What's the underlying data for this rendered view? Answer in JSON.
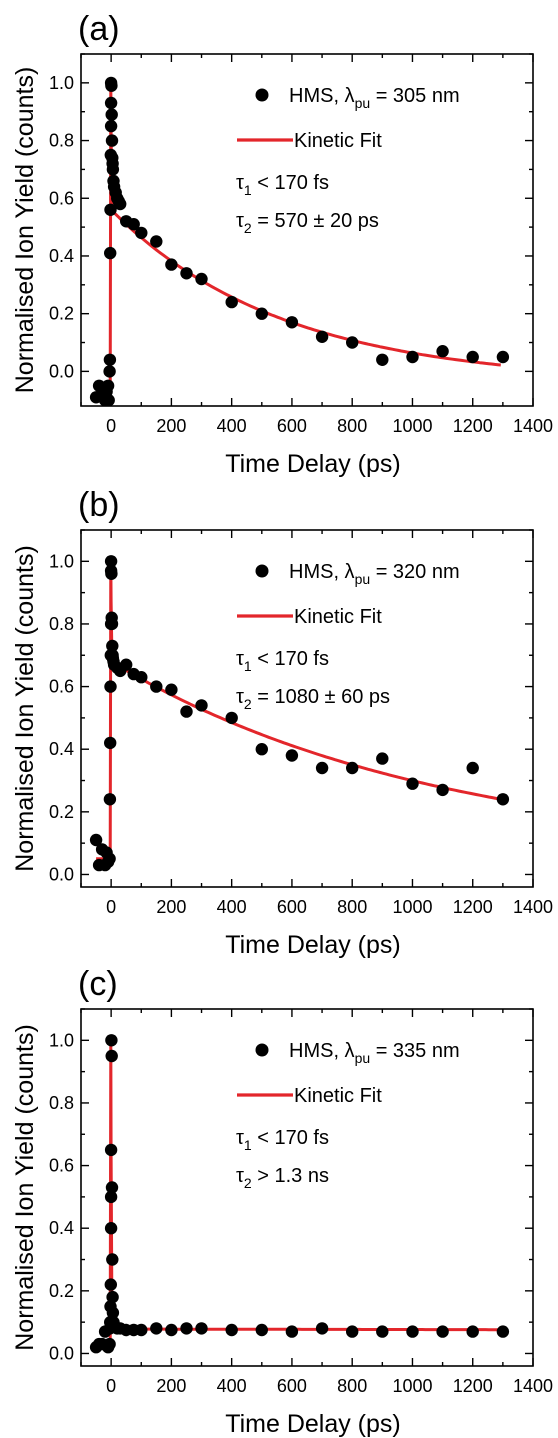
{
  "chart_data": [
    {
      "type": "scatter",
      "panel_label": "(a)",
      "xlabel": "Time Delay (ps)",
      "ylabel": "Normalised Ion Yield (counts)",
      "xlim": [
        -100,
        1400
      ],
      "ylim": [
        -0.12,
        1.1
      ],
      "x_ticks": [
        0,
        200,
        400,
        600,
        800,
        1000,
        1200,
        1400
      ],
      "y_ticks": [
        0.0,
        0.2,
        0.4,
        0.6,
        0.8,
        1.0
      ],
      "x_tick_labels": [
        "0",
        "200",
        "400",
        "600",
        "800",
        "1000",
        "1200",
        "1400"
      ],
      "y_tick_labels": [
        "0.0",
        "0.2",
        "0.4",
        "0.6",
        "0.8",
        "1.0"
      ],
      "legend": {
        "data_name": "HMS, λ",
        "data_sub": "pu",
        "data_suffix": " = 305 nm",
        "fit_name": "Kinetic Fit",
        "tau1_prefix": "τ",
        "tau1_sub": "1",
        "tau1_suffix": " < 170 fs",
        "tau2_prefix": "τ",
        "tau2_sub": "2",
        "tau2_suffix": " = 570 ± 20 ps"
      },
      "colors": {
        "points": "#000000",
        "fit": "#e3262b"
      },
      "fit": {
        "baseline": -0.065,
        "peak": 1.0,
        "amplitude": 0.6,
        "tau2_ps": 570,
        "offset": -0.04
      },
      "series": [
        {
          "name": "HMS, λpu = 305 nm",
          "x": [
            -50,
            -40,
            -30,
            -20,
            -15,
            -10,
            -8,
            -5,
            -4,
            -3,
            -2,
            -1,
            0,
            0,
            0,
            1,
            2,
            3,
            4,
            5,
            6,
            8,
            10,
            15,
            20,
            25,
            30,
            50,
            75,
            100,
            150,
            200,
            250,
            300,
            400,
            500,
            600,
            700,
            800,
            900,
            1000,
            1100,
            1200,
            1300
          ],
          "y": [
            -0.09,
            -0.05,
            -0.06,
            -0.1,
            -0.07,
            -0.05,
            -0.1,
            0.0,
            0.04,
            0.41,
            0.56,
            0.75,
            0.85,
            0.93,
            1.0,
            0.99,
            0.89,
            0.8,
            0.74,
            0.72,
            0.7,
            0.66,
            0.64,
            0.62,
            0.6,
            0.59,
            0.58,
            0.52,
            0.51,
            0.48,
            0.45,
            0.37,
            0.34,
            0.32,
            0.24,
            0.2,
            0.17,
            0.12,
            0.1,
            0.04,
            0.05,
            0.07,
            0.05,
            0.05
          ]
        }
      ]
    },
    {
      "type": "scatter",
      "panel_label": "(b)",
      "xlabel": "Time Delay (ps)",
      "ylabel": "Normalised Ion Yield (counts)",
      "xlim": [
        -100,
        1400
      ],
      "ylim": [
        -0.04,
        1.1
      ],
      "x_ticks": [
        0,
        200,
        400,
        600,
        800,
        1000,
        1200,
        1400
      ],
      "y_ticks": [
        0.0,
        0.2,
        0.4,
        0.6,
        0.8,
        1.0
      ],
      "x_tick_labels": [
        "0",
        "200",
        "400",
        "600",
        "800",
        "1000",
        "1200",
        "1400"
      ],
      "y_tick_labels": [
        "0.0",
        "0.2",
        "0.4",
        "0.6",
        "0.8",
        "1.0"
      ],
      "legend": {
        "data_name": "HMS, λ",
        "data_sub": "pu",
        "data_suffix": " = 320 nm",
        "fit_name": "Kinetic Fit",
        "tau1_prefix": "τ",
        "tau1_sub": "1",
        "tau1_suffix": " < 170 fs",
        "tau2_prefix": "τ",
        "tau2_sub": "2",
        "tau2_suffix": " = 1080 ± 60 ps"
      },
      "colors": {
        "points": "#000000",
        "fit": "#e3262b"
      },
      "fit": {
        "baseline": 0.05,
        "peak": 1.0,
        "amplitude": 0.63,
        "tau2_ps": 1080,
        "offset": 0.05
      },
      "series": [
        {
          "name": "HMS, λpu = 320 nm",
          "x": [
            -50,
            -40,
            -30,
            -20,
            -15,
            -10,
            -5,
            -4,
            -3,
            -2,
            -1,
            0,
            0,
            0,
            1,
            2,
            3,
            4,
            5,
            6,
            8,
            10,
            20,
            30,
            50,
            75,
            100,
            150,
            200,
            250,
            300,
            400,
            500,
            600,
            700,
            800,
            900,
            1000,
            1100,
            1200,
            1300
          ],
          "y": [
            0.11,
            0.03,
            0.08,
            0.03,
            0.07,
            0.04,
            0.05,
            0.24,
            0.42,
            0.6,
            0.7,
            0.8,
            0.97,
            1.0,
            0.96,
            0.82,
            0.8,
            0.73,
            0.7,
            0.69,
            0.68,
            0.67,
            0.66,
            0.65,
            0.67,
            0.64,
            0.63,
            0.6,
            0.59,
            0.52,
            0.54,
            0.5,
            0.4,
            0.38,
            0.34,
            0.34,
            0.37,
            0.29,
            0.27,
            0.34,
            0.24
          ]
        }
      ]
    },
    {
      "type": "scatter",
      "panel_label": "(c)",
      "xlabel": "Time Delay (ps)",
      "ylabel": "Normalised Ion Yield (counts)",
      "xlim": [
        -100,
        1400
      ],
      "ylim": [
        -0.04,
        1.1
      ],
      "x_ticks": [
        0,
        200,
        400,
        600,
        800,
        1000,
        1200,
        1400
      ],
      "y_ticks": [
        0.0,
        0.2,
        0.4,
        0.6,
        0.8,
        1.0
      ],
      "x_tick_labels": [
        "0",
        "200",
        "400",
        "600",
        "800",
        "1000",
        "1200",
        "1400"
      ],
      "y_tick_labels": [
        "0.0",
        "0.2",
        "0.4",
        "0.6",
        "0.8",
        "1.0"
      ],
      "legend": {
        "data_name": "HMS, λ",
        "data_sub": "pu",
        "data_suffix": " = 335 nm",
        "fit_name": "Kinetic Fit",
        "tau1_prefix": "τ",
        "tau1_sub": "1",
        "tau1_suffix": " < 170 fs",
        "tau2_prefix": "τ",
        "tau2_sub": "2",
        "tau2_suffix": " > 1.3 ns"
      },
      "colors": {
        "points": "#000000",
        "fit": "#e3262b"
      },
      "fit": {
        "baseline": 0.03,
        "peak": 1.0,
        "amplitude": 0.078,
        "tau2_ps": 50000,
        "offset": 0.0
      },
      "series": [
        {
          "name": "HMS, λpu = 335 nm",
          "x": [
            -50,
            -40,
            -30,
            -20,
            -10,
            -5,
            -4,
            -3,
            -2,
            -1,
            0,
            0,
            0,
            1,
            2,
            3,
            4,
            5,
            6,
            8,
            10,
            20,
            30,
            50,
            75,
            100,
            150,
            200,
            250,
            300,
            400,
            500,
            600,
            700,
            800,
            900,
            1000,
            1100,
            1200,
            1300
          ],
          "y": [
            0.02,
            0.03,
            0.03,
            0.07,
            0.02,
            0.03,
            0.08,
            0.1,
            0.15,
            0.22,
            0.4,
            0.5,
            0.65,
            1.0,
            0.95,
            0.53,
            0.3,
            0.18,
            0.13,
            0.1,
            0.09,
            0.08,
            0.08,
            0.075,
            0.075,
            0.075,
            0.08,
            0.075,
            0.08,
            0.08,
            0.075,
            0.075,
            0.07,
            0.08,
            0.07,
            0.07,
            0.07,
            0.07,
            0.07,
            0.07
          ]
        }
      ]
    }
  ]
}
